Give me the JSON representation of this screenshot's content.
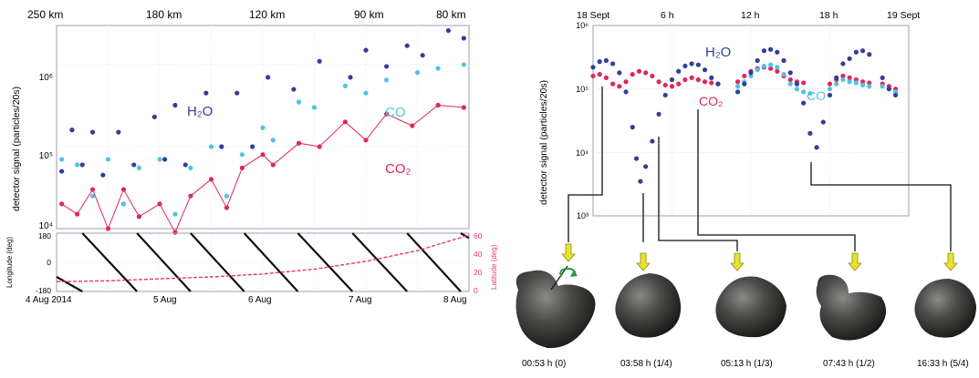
{
  "left_panel": {
    "top_axis_ticks": [
      "250 km",
      "180 km",
      "120 km",
      "90 km",
      "80 km"
    ],
    "ylabel": "detector signal (particles/20s)",
    "y_ticks": [
      "10⁴",
      "10⁵",
      "10⁶"
    ],
    "labels": {
      "h2o": "H₂O",
      "co": "CO",
      "co2": "CO₂"
    },
    "sub": {
      "ylabel_left": "Longitude (deg)",
      "ylabel_right": "Latitude (deg)",
      "left_ticks": [
        "180",
        "0",
        "-180"
      ],
      "right_ticks": [
        "60",
        "40",
        "20",
        "0"
      ],
      "x_ticks": [
        "4 Aug 2014",
        "5 Aug",
        "6 Aug",
        "7 Aug",
        "8 Aug"
      ]
    }
  },
  "right_panel": {
    "top_axis_ticks": [
      "18 Sept",
      "6 h",
      "12 h",
      "18 h",
      "19 Sept"
    ],
    "ylabel": "detector signal (particles/20s)",
    "y_ticks": [
      "10³",
      "10⁴",
      "10⁵",
      "10⁶"
    ],
    "labels": {
      "h2o": "H₂O",
      "co": "CO",
      "co2": "CO₂"
    }
  },
  "nucleus_views": [
    {
      "time": "00:53 h (0)"
    },
    {
      "time": "03:58 h (1/4)"
    },
    {
      "time": "05:13 h (1/3)"
    },
    {
      "time": "07:43 h (1/2)"
    },
    {
      "time": "16:33 h (5/4)"
    }
  ],
  "colors": {
    "h2o": "#2f3f9b",
    "co": "#4ec3e6",
    "co2": "#e0275a",
    "latitude": "#e8357a",
    "arrow": "#e9e22c",
    "rotation": "#2a9a4c"
  },
  "chart_data": [
    {
      "type": "scatter",
      "x_axis": "days since 4 Aug 2014 00:00",
      "xlim": [
        0,
        4
      ],
      "y_scale": "log",
      "ylim": [
        10000,
        3000000
      ],
      "series": [
        {
          "name": "H₂O",
          "x": [
            0.05,
            0.15,
            0.25,
            0.35,
            0.45,
            0.6,
            0.75,
            0.95,
            1.05,
            1.15,
            1.25,
            1.45,
            1.6,
            1.75,
            1.9,
            2.05,
            2.3,
            2.55,
            2.85,
            3.0,
            3.2,
            3.4,
            3.55,
            3.8,
            3.95
          ],
          "y": [
            50000,
            160000,
            60000,
            150000,
            45000,
            150000,
            60000,
            230000,
            70000,
            320000,
            60000,
            450000,
            100000,
            450000,
            100000,
            700000,
            500000,
            1100000,
            700000,
            1500000,
            950000,
            1700000,
            1300000,
            2600000,
            2100000
          ]
        },
        {
          "name": "CO",
          "x": [
            0.05,
            0.2,
            0.35,
            0.5,
            0.65,
            0.8,
            1.0,
            1.15,
            1.3,
            1.5,
            1.65,
            1.8,
            2.0,
            2.1,
            2.35,
            2.5,
            2.8,
            3.0,
            3.2,
            3.5,
            3.7,
            3.95
          ],
          "y": [
            70000,
            60000,
            25000,
            70000,
            20000,
            55000,
            70000,
            15000,
            55000,
            100000,
            25000,
            80000,
            170000,
            120000,
            350000,
            300000,
            550000,
            450000,
            650000,
            800000,
            900000,
            1000000
          ]
        },
        {
          "name": "CO₂",
          "x": [
            0.05,
            0.2,
            0.35,
            0.5,
            0.65,
            0.8,
            1.0,
            1.15,
            1.3,
            1.5,
            1.65,
            1.8,
            2.0,
            2.1,
            2.35,
            2.55,
            2.8,
            3.0,
            3.2,
            3.45,
            3.7,
            3.95
          ],
          "y": [
            20000,
            15000,
            30000,
            10000,
            30000,
            14000,
            20000,
            9000,
            25000,
            40000,
            18000,
            55000,
            80000,
            60000,
            110000,
            100000,
            200000,
            120000,
            250000,
            180000,
            320000,
            300000
          ]
        }
      ]
    },
    {
      "type": "line",
      "x_axis": "days since 4 Aug 2014 00:00",
      "xlim": [
        0,
        4
      ],
      "y_left_range": [
        -180,
        180
      ],
      "y_right_range": [
        0,
        60
      ],
      "series": [
        {
          "name": "Longitude (deg)",
          "x": [
            0,
            0.25,
            0.25,
            0.78,
            0.78,
            1.3,
            1.3,
            1.82,
            1.82,
            2.34,
            2.34,
            2.87,
            2.87,
            3.4,
            3.4,
            3.92,
            3.92,
            4.0
          ],
          "y": [
            -90,
            -180,
            180,
            -180,
            180,
            -180,
            180,
            -180,
            180,
            -180,
            180,
            -180,
            180,
            -180,
            180,
            -180,
            180,
            150
          ]
        },
        {
          "name": "Latitude (deg)",
          "x": [
            0,
            0.5,
            1.0,
            1.5,
            2.0,
            2.5,
            3.0,
            3.5,
            4.0
          ],
          "y": [
            10,
            11,
            13,
            15,
            18,
            23,
            31,
            42,
            58
          ]
        }
      ]
    },
    {
      "type": "scatter",
      "x_axis": "hours since 18 Sept 00:00",
      "xlim": [
        0,
        24
      ],
      "y_scale": "log",
      "ylim": [
        1000,
        1000000
      ],
      "series": [
        {
          "name": "H₂O",
          "x": [
            0,
            0.5,
            1,
            1.5,
            2,
            2.5,
            3,
            3.3,
            3.6,
            4,
            4.5,
            5,
            5.5,
            6,
            6.5,
            7,
            7.5,
            8,
            8.5,
            9,
            9.5,
            11,
            11.5,
            12,
            12.5,
            13,
            13.5,
            14,
            14.5,
            15,
            15.5,
            16,
            16.5,
            17,
            17.5,
            18,
            18.5,
            19,
            19.5,
            20,
            20.5,
            21,
            22,
            22.5,
            23
          ],
          "y": [
            220000,
            270000,
            280000,
            250000,
            180000,
            90000,
            25000,
            8000,
            3500,
            6000,
            15000,
            40000,
            80000,
            140000,
            190000,
            230000,
            250000,
            240000,
            200000,
            150000,
            120000,
            90000,
            120000,
            180000,
            280000,
            400000,
            420000,
            380000,
            280000,
            180000,
            120000,
            60000,
            20000,
            12000,
            30000,
            80000,
            150000,
            250000,
            300000,
            380000,
            400000,
            350000,
            150000,
            100000,
            80000
          ]
        },
        {
          "name": "CO",
          "x": [
            11,
            11.5,
            12,
            12.5,
            13,
            13.5,
            14,
            14.5,
            15,
            15.5,
            16,
            16.5,
            18,
            18.5,
            19,
            19.5,
            20,
            20.5,
            21,
            22,
            22.5,
            23
          ],
          "y": [
            110000,
            130000,
            160000,
            200000,
            230000,
            240000,
            220000,
            170000,
            120000,
            100000,
            90000,
            85000,
            100000,
            120000,
            140000,
            130000,
            125000,
            115000,
            110000,
            110000,
            100000,
            90000
          ]
        },
        {
          "name": "CO₂",
          "x": [
            0,
            0.5,
            1,
            1.5,
            2,
            2.5,
            3,
            3.5,
            4,
            4.5,
            5,
            5.5,
            6,
            6.5,
            7,
            7.5,
            8,
            8.5,
            9,
            9.5,
            11,
            11.5,
            12,
            12.5,
            13,
            13.5,
            14,
            14.5,
            15,
            15.5,
            16,
            18,
            18.5,
            19,
            19.5,
            20,
            20.5,
            21,
            22,
            22.5,
            23
          ],
          "y": [
            160000,
            170000,
            150000,
            120000,
            110000,
            130000,
            170000,
            190000,
            180000,
            160000,
            130000,
            115000,
            110000,
            120000,
            140000,
            150000,
            140000,
            130000,
            125000,
            120000,
            130000,
            160000,
            190000,
            210000,
            220000,
            210000,
            190000,
            160000,
            140000,
            130000,
            125000,
            120000,
            140000,
            160000,
            150000,
            140000,
            130000,
            125000,
            120000,
            110000,
            100000
          ]
        }
      ]
    }
  ]
}
